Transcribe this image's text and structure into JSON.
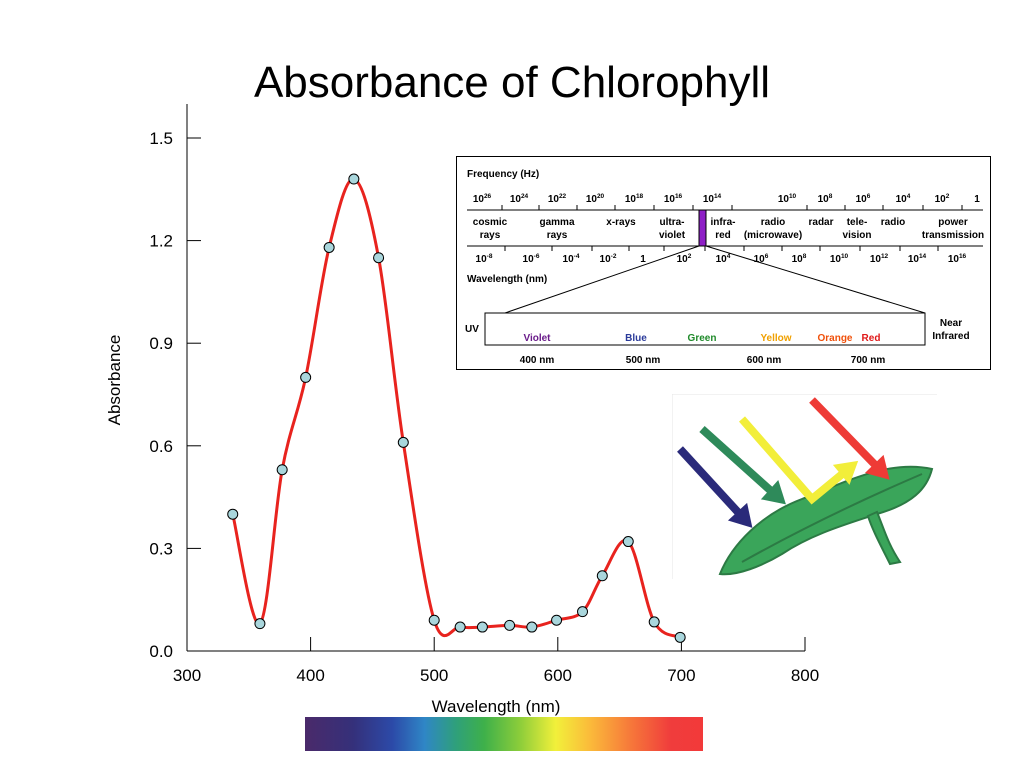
{
  "chart_data": {
    "type": "line",
    "title": "Absorbance of Chlorophyll",
    "xlabel": "Wavelength (nm)",
    "ylabel": "Absorbance",
    "xlim": [
      300,
      800
    ],
    "ylim": [
      0,
      1.5
    ],
    "x_ticks": [
      300,
      400,
      500,
      600,
      700,
      800
    ],
    "x_tick_labels": [
      "300",
      "400",
      "500",
      "600",
      "700",
      "800"
    ],
    "y_ticks": [
      0,
      0.3,
      0.6,
      0.9,
      1.2,
      1.5
    ],
    "y_tick_labels": [
      "0.0",
      "0.3",
      "0.6",
      "0.9",
      "1.2",
      "1.5"
    ],
    "grid": false,
    "series": [
      {
        "color": "#e8231e",
        "marker_color": "#a9d6dc",
        "x": [
          337,
          359,
          377,
          396,
          415,
          435,
          455,
          475,
          500,
          521,
          539,
          561,
          579,
          599,
          620,
          636,
          657,
          678,
          699
        ],
        "y": [
          0.4,
          0.08,
          0.53,
          0.8,
          1.18,
          1.38,
          1.15,
          0.61,
          0.09,
          0.07,
          0.07,
          0.075,
          0.07,
          0.09,
          0.115,
          0.22,
          0.32,
          0.085,
          0.04
        ]
      }
    ]
  },
  "spectrum": {
    "frequency_label": "Frequency (Hz)",
    "wavelength_label": "Wavelength (nm)",
    "frequencies": [
      {
        "base": "10",
        "exp": "26"
      },
      {
        "base": "10",
        "exp": "24"
      },
      {
        "base": "10",
        "exp": "22"
      },
      {
        "base": "10",
        "exp": "20"
      },
      {
        "base": "10",
        "exp": "18"
      },
      {
        "base": "10",
        "exp": "16"
      },
      {
        "base": "10",
        "exp": "14"
      },
      {
        "base": "10",
        "exp": "10"
      },
      {
        "base": "10",
        "exp": "8"
      },
      {
        "base": "10",
        "exp": "6"
      },
      {
        "base": "10",
        "exp": "4"
      },
      {
        "base": "10",
        "exp": "2"
      },
      {
        "base": "1",
        "exp": ""
      }
    ],
    "wavelengths": [
      {
        "base": "10",
        "exp": "-8"
      },
      {
        "base": "10",
        "exp": "-6"
      },
      {
        "base": "10",
        "exp": "-4"
      },
      {
        "base": "10",
        "exp": "-2"
      },
      {
        "base": "1",
        "exp": ""
      },
      {
        "base": "10",
        "exp": "2"
      },
      {
        "base": "10",
        "exp": "4"
      },
      {
        "base": "10",
        "exp": "6"
      },
      {
        "base": "10",
        "exp": "8"
      },
      {
        "base": "10",
        "exp": "10"
      },
      {
        "base": "10",
        "exp": "12"
      },
      {
        "base": "10",
        "exp": "14"
      },
      {
        "base": "10",
        "exp": "16"
      }
    ],
    "regions": [
      {
        "lines": [
          "cosmic",
          "rays"
        ]
      },
      {
        "lines": [
          "gamma",
          "rays"
        ]
      },
      {
        "lines": [
          "x-rays"
        ]
      },
      {
        "lines": [
          "ultra-",
          "violet"
        ]
      },
      {
        "lines": [
          "infra-",
          "red"
        ]
      },
      {
        "lines": [
          "radio",
          "(microwave)"
        ]
      },
      {
        "lines": [
          "radar"
        ]
      },
      {
        "lines": [
          "tele-",
          "vision"
        ]
      },
      {
        "lines": [
          "radio"
        ]
      },
      {
        "lines": [
          "power",
          "transmission"
        ]
      }
    ],
    "visible_band_color": "#8e1fc6",
    "uv_label": "UV",
    "near_infrared_lines": [
      "Near",
      "Infrared"
    ],
    "colors": [
      {
        "name": "Violet",
        "color": "#6a1b8a"
      },
      {
        "name": "Blue",
        "color": "#2a3a9a"
      },
      {
        "name": "Green",
        "color": "#1f8a2a"
      },
      {
        "name": "Yellow",
        "color": "#f0a000"
      },
      {
        "name": "Orange",
        "color": "#f0500a"
      },
      {
        "name": "Red",
        "color": "#e01818"
      }
    ],
    "nm_labels": [
      "400 nm",
      "500 nm",
      "600 nm",
      "700 nm"
    ]
  },
  "illustration": {
    "arrows": [
      {
        "color": "#2a2a7a"
      },
      {
        "color": "#2e8a5a"
      },
      {
        "color": "#f2ee3a"
      },
      {
        "color": "#ee3b36"
      }
    ],
    "leaf_color": "#3aa55a"
  }
}
